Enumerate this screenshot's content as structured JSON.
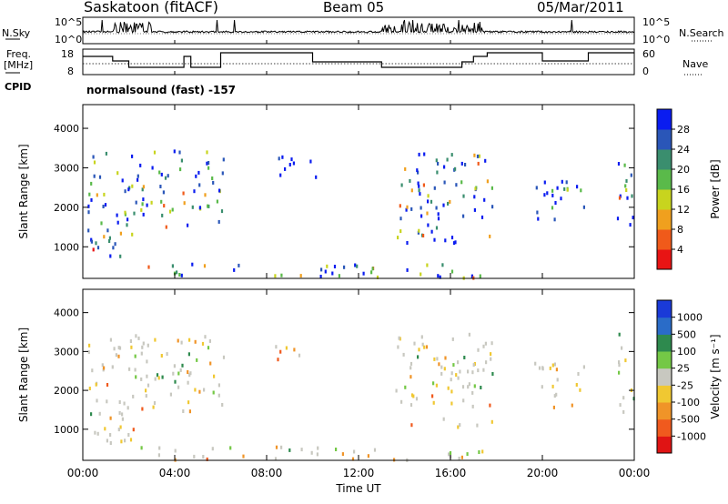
{
  "header": {
    "station": "Saskatoon (fitACF)",
    "beam": "Beam 05",
    "date": "05/Mar/2011"
  },
  "noise_panel": {
    "left_label": "N.Sky",
    "right_label": "N.Search",
    "left_ticks": [
      "10^5",
      "10^0"
    ],
    "right_ticks": [
      "10^5",
      "10^0"
    ]
  },
  "freq_panel": {
    "left_label_1": "Freq.",
    "left_label_2": "[MHz]",
    "left_ticks": [
      "18",
      "8"
    ],
    "right_label": "Nave",
    "right_ticks": [
      "60",
      "0"
    ]
  },
  "cpid": {
    "label": "CPID",
    "text": "normalsound (fast) -157"
  },
  "time_axis": {
    "label": "Time UT",
    "ticks": [
      "00:00",
      "04:00",
      "08:00",
      "12:00",
      "16:00",
      "20:00",
      "00:00"
    ]
  },
  "chart_data": [
    {
      "type": "heatmap",
      "name": "power",
      "ylabel": "Slant Range [km]",
      "yticks": [
        "1000",
        "2000",
        "3000",
        "4000"
      ],
      "ylim": [
        200,
        4600
      ],
      "xlim": [
        0,
        24
      ],
      "colorbar_label": "Power [dB]",
      "colorbar_ticks": [
        "4",
        "8",
        "12",
        "16",
        "20",
        "24",
        "28"
      ],
      "colorbar_colors": [
        "#0a1cf0",
        "#2a56b8",
        "#3a8e6e",
        "#5aba4a",
        "#c8d41e",
        "#f0a01e",
        "#f05a1a",
        "#e81414"
      ],
      "echo_regions": [
        {
          "t0": 0.2,
          "t1": 2.6,
          "r0": 600,
          "r1": 3500
        },
        {
          "t0": 2.6,
          "t1": 6.1,
          "r0": 1500,
          "r1": 3500
        },
        {
          "t0": 8.2,
          "t1": 10.2,
          "r0": 2800,
          "r1": 3400
        },
        {
          "t0": 13.6,
          "t1": 17.8,
          "r0": 1100,
          "r1": 3500
        },
        {
          "t0": 19.6,
          "t1": 21.8,
          "r0": 1600,
          "r1": 2900
        },
        {
          "t0": 23.2,
          "t1": 24.0,
          "r0": 1400,
          "r1": 3500
        },
        {
          "t0": 2.5,
          "t1": 17.5,
          "r0": 250,
          "r1": 600
        }
      ]
    },
    {
      "type": "heatmap",
      "name": "velocity",
      "ylabel": "Slant Range [km]",
      "yticks": [
        "1000",
        "2000",
        "3000",
        "4000"
      ],
      "ylim": [
        200,
        4600
      ],
      "xlim": [
        0,
        24
      ],
      "colorbar_label": "Velocity [m s⁻¹]",
      "colorbar_ticks": [
        "1000",
        "500",
        "100",
        "25",
        "-25",
        "-100",
        "-500",
        "-1000"
      ],
      "colorbar_colors": [
        "#1a3ad8",
        "#2a6cc8",
        "#2e8a4e",
        "#74c846",
        "#c8c8c0",
        "#f0c832",
        "#f09428",
        "#f05a1e",
        "#e01414"
      ]
    }
  ]
}
